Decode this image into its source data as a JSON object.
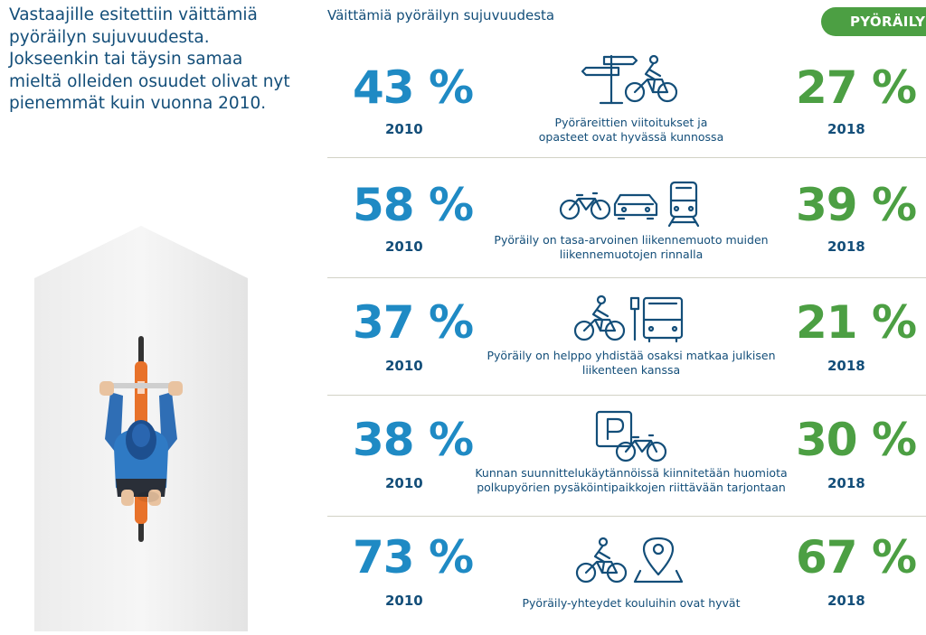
{
  "intro": {
    "lines": [
      "Vastaajille esitettiin väittämiä",
      "pyöräilyn sujuvuudesta.",
      "Jokseenkin tai täysin samaa",
      "mieltä olleiden osuudet olivat nyt",
      "pienemmät kuin vuonna 2010."
    ]
  },
  "section_title": "Väittämiä pyöräilyn sujuvuudesta",
  "badge": "PYÖRÄILYN",
  "colors": {
    "blue": "#1f8ac4",
    "green": "#4c9f43",
    "navy": "#134e79",
    "divider": "#d2d2c6"
  },
  "statements": [
    {
      "pct_2010": "43 %",
      "year_a": "2010",
      "pct_2018": "27 %",
      "year_b": "2018",
      "caption": [
        "Pyöräreittien viitoitukset ja",
        "opasteet ovat hyvässä kunnossa"
      ],
      "icons": [
        "signpost-icon",
        "cyclist-icon"
      ]
    },
    {
      "pct_2010": "58 %",
      "year_a": "2010",
      "pct_2018": "39 %",
      "year_b": "2018",
      "caption": [
        "Pyöräily on tasa-arvoinen liikennemuoto muiden",
        "liikennemuotojen rinnalla"
      ],
      "icons": [
        "bicycle-icon",
        "car-icon",
        "train-icon"
      ]
    },
    {
      "pct_2010": "37 %",
      "year_a": "2010",
      "pct_2018": "21 %",
      "year_b": "2018",
      "caption": [
        "Pyöräily on helppo yhdistää osaksi matkaa julkisen",
        "liikenteen kanssa"
      ],
      "icons": [
        "cyclist-icon",
        "bus-stop-icon"
      ]
    },
    {
      "pct_2010": "38 %",
      "year_a": "2010",
      "pct_2018": "30 %",
      "year_b": "2018",
      "caption": [
        "Kunnan suunnittelukäytännöissä kiinnitetään huomiota",
        "polkupyörien pysäköintipaikkojen riittävään tarjontaan"
      ],
      "icons": [
        "parking-icon",
        "bicycle-icon"
      ]
    },
    {
      "pct_2010": "73 %",
      "year_a": "2010",
      "pct_2018": "67 %",
      "year_b": "2018",
      "caption": [
        "Pyöräily-yhteydet kouluihin ovat hyvät"
      ],
      "icons": [
        "cyclist-icon",
        "location-pin-icon"
      ]
    }
  ]
}
